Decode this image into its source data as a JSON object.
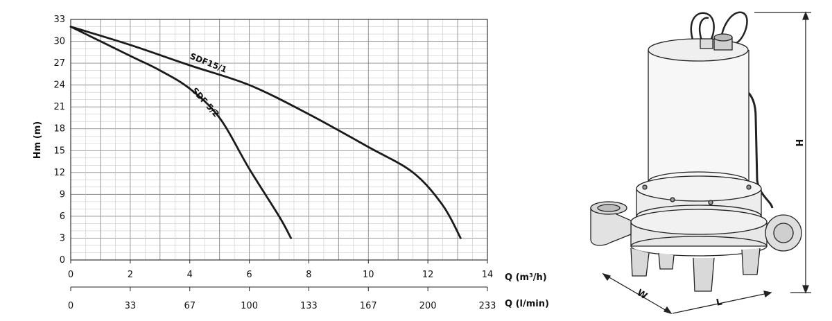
{
  "chart_data": {
    "type": "line",
    "ylabel": "Hm (m)",
    "ylim": [
      0,
      33
    ],
    "yticks": [
      0,
      3,
      6,
      9,
      12,
      15,
      18,
      21,
      24,
      27,
      30,
      33
    ],
    "xlabel": "Q (m³/h)",
    "xlim": [
      0,
      14
    ],
    "xticks": [
      0,
      2,
      4,
      6,
      8,
      10,
      12,
      14
    ],
    "x2label": "Q (l/min)",
    "x2ticks": [
      "0",
      "33",
      "67",
      "100",
      "133",
      "167",
      "200",
      "233"
    ],
    "grid": true,
    "series": [
      {
        "name": "SDF15/1",
        "points": [
          [
            0,
            32
          ],
          [
            2,
            29.5
          ],
          [
            4,
            26.7
          ],
          [
            6,
            24
          ],
          [
            8,
            20
          ],
          [
            10,
            15.5
          ],
          [
            11.5,
            12
          ],
          [
            12.5,
            7.5
          ],
          [
            13.1,
            3
          ]
        ]
      },
      {
        "name": "SDF 5/2",
        "points": [
          [
            0,
            32
          ],
          [
            2,
            28
          ],
          [
            3,
            26
          ],
          [
            4,
            23.5
          ],
          [
            5,
            19.5
          ],
          [
            6,
            12.5
          ],
          [
            7,
            6
          ],
          [
            7.4,
            3
          ]
        ]
      }
    ]
  },
  "pump": {
    "dimension_labels": {
      "height": "H",
      "width": "W",
      "length": "L"
    }
  }
}
